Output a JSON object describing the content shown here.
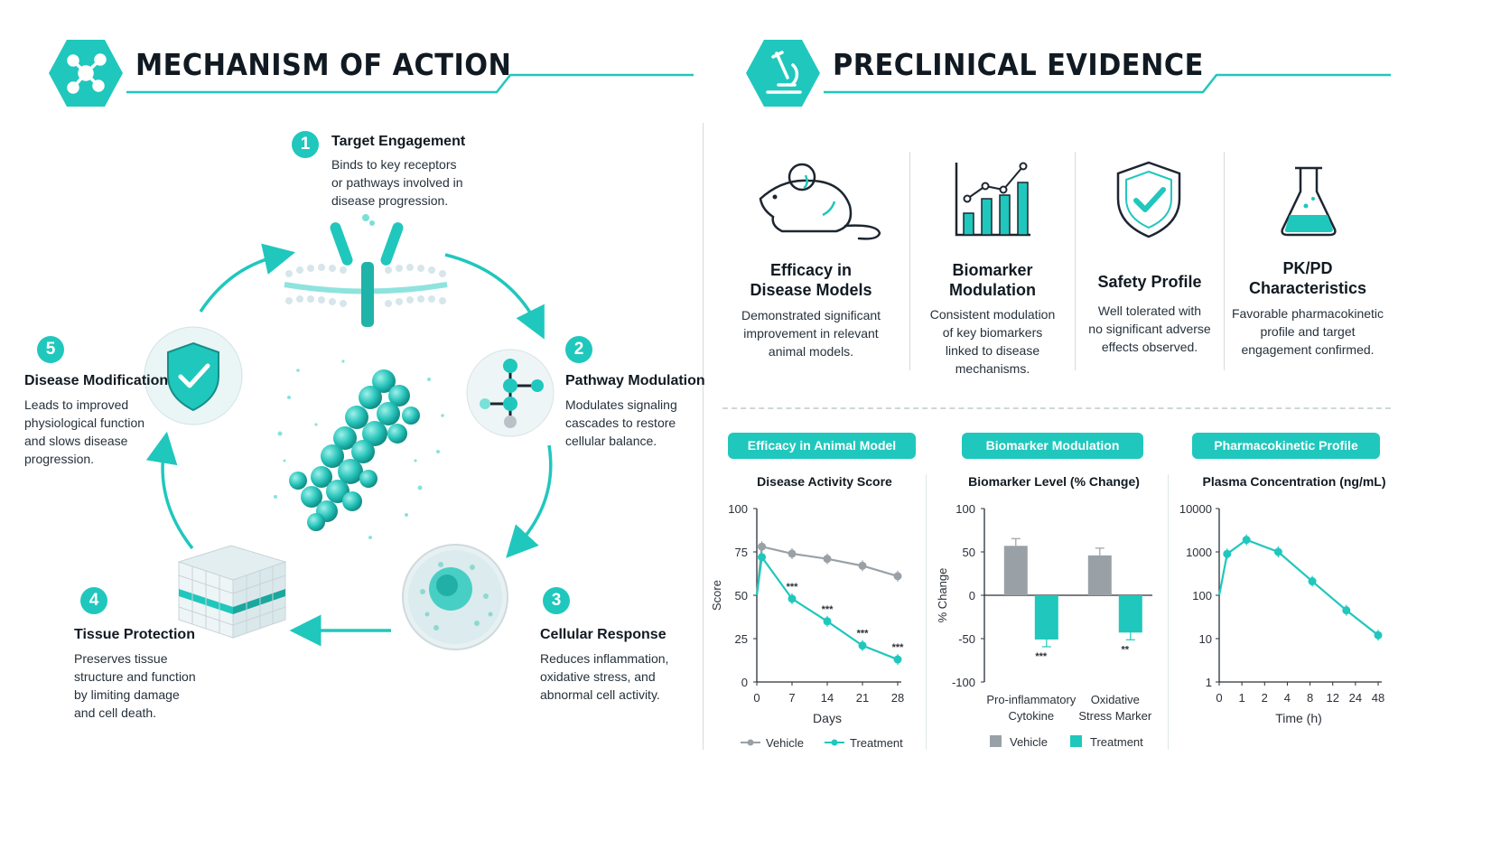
{
  "colors": {
    "accent": "#20c7bd",
    "vehicle": "#9aa1a6",
    "dark": "#111a22"
  },
  "left": {
    "title": "MECHANISM OF ACTION",
    "icon": "molecule-network-icon",
    "steps": [
      {
        "num": "1",
        "title": "Target Engagement",
        "desc": [
          "Binds to key receptors",
          "or pathways involved in",
          "disease progression."
        ],
        "icon": "receptor-membrane-icon"
      },
      {
        "num": "2",
        "title": "Pathway Modulation",
        "desc": [
          "Modulates signaling",
          "cascades to restore",
          "cellular balance."
        ],
        "icon": "pathway-molecule-icon"
      },
      {
        "num": "3",
        "title": "Cellular Response",
        "desc": [
          "Reduces inflammation,",
          "oxidative stress, and",
          "abnormal cell activity."
        ],
        "icon": "cell-icon"
      },
      {
        "num": "4",
        "title": "Tissue Protection",
        "desc": [
          "Preserves tissue",
          "structure and function",
          "by limiting damage",
          "and cell death."
        ],
        "icon": "tissue-cube-icon"
      },
      {
        "num": "5",
        "title": "Disease Modification",
        "desc": [
          "Leads to improved",
          "physiological function",
          "and slows disease",
          "progression."
        ],
        "icon": "shield-check-icon"
      }
    ]
  },
  "right": {
    "title": "PRECLINICAL EVIDENCE",
    "icon": "microscope-icon",
    "cards": [
      {
        "title": [
          "Efficacy in",
          "Disease Models"
        ],
        "desc": [
          "Demonstrated significant",
          "improvement in relevant",
          "animal models."
        ],
        "icon": "mouse-icon"
      },
      {
        "title": [
          "Biomarker",
          "Modulation"
        ],
        "desc": [
          "Consistent modulation",
          "of key biomarkers",
          "linked to disease",
          "mechanisms."
        ],
        "icon": "bar-trend-chart-icon"
      },
      {
        "title": [
          "Safety Profile"
        ],
        "desc": [
          "Well tolerated with",
          "no significant adverse",
          "effects observed."
        ],
        "icon": "safety-shield-icon"
      },
      {
        "title": [
          "PK/PD",
          "Characteristics"
        ],
        "desc": [
          "Favorable pharmacokinetic",
          "profile and target",
          "engagement confirmed."
        ],
        "icon": "flask-icon"
      }
    ]
  },
  "chart_data": [
    {
      "type": "line",
      "pill": "Efficacy in Animal Model",
      "title": "Disease Activity Score",
      "xlabel": "Days",
      "ylabel": "Score",
      "x": [
        0,
        1,
        7,
        14,
        21,
        28
      ],
      "xticks": [
        "0",
        "7",
        "14",
        "21",
        "28"
      ],
      "yticks": [
        "0",
        "25",
        "50",
        "75",
        "100"
      ],
      "ylim": [
        0,
        100
      ],
      "series": [
        {
          "name": "Vehicle",
          "values": [
            50,
            78,
            74,
            71,
            67,
            61
          ],
          "color": "#9aa1a6"
        },
        {
          "name": "Treatment",
          "values": [
            50,
            72,
            48,
            35,
            21,
            13
          ],
          "color": "#20c7bd"
        }
      ],
      "annotations": [
        {
          "x": 7,
          "text": "***"
        },
        {
          "x": 14,
          "text": "***"
        },
        {
          "x": 21,
          "text": "***"
        },
        {
          "x": 28,
          "text": "***"
        }
      ]
    },
    {
      "type": "bar",
      "pill": "Biomarker Modulation",
      "title": "Biomarker Level (% Change)",
      "ylabel": "% Change",
      "categories": [
        [
          "Pro-inflammatory",
          "Cytokine"
        ],
        [
          "Oxidative",
          "Stress Marker"
        ]
      ],
      "yticks": [
        "100",
        "50",
        "0",
        "-50",
        "-100"
      ],
      "ylim": [
        -100,
        100
      ],
      "series": [
        {
          "name": "Vehicle",
          "values": [
            57,
            46
          ],
          "color": "#9aa1a6"
        },
        {
          "name": "Treatment",
          "values": [
            -51,
            -43
          ],
          "color": "#20c7bd"
        }
      ],
      "annotations": [
        "***",
        "**"
      ]
    },
    {
      "type": "line",
      "pill": "Pharmacokinetic Profile",
      "title": "Plasma Concentration (ng/mL)",
      "xlabel": "Time (h)",
      "xticks": [
        "0",
        "1",
        "2",
        "4",
        "8",
        "12",
        "24",
        "48"
      ],
      "yticks": [
        "10000",
        "1000",
        "100",
        "10",
        "1"
      ],
      "yscale": "log",
      "series": [
        {
          "name": "Plasma concentration",
          "values": [
            100,
            900,
            1900,
            1000,
            210,
            45,
            12
          ]
        }
      ]
    }
  ]
}
